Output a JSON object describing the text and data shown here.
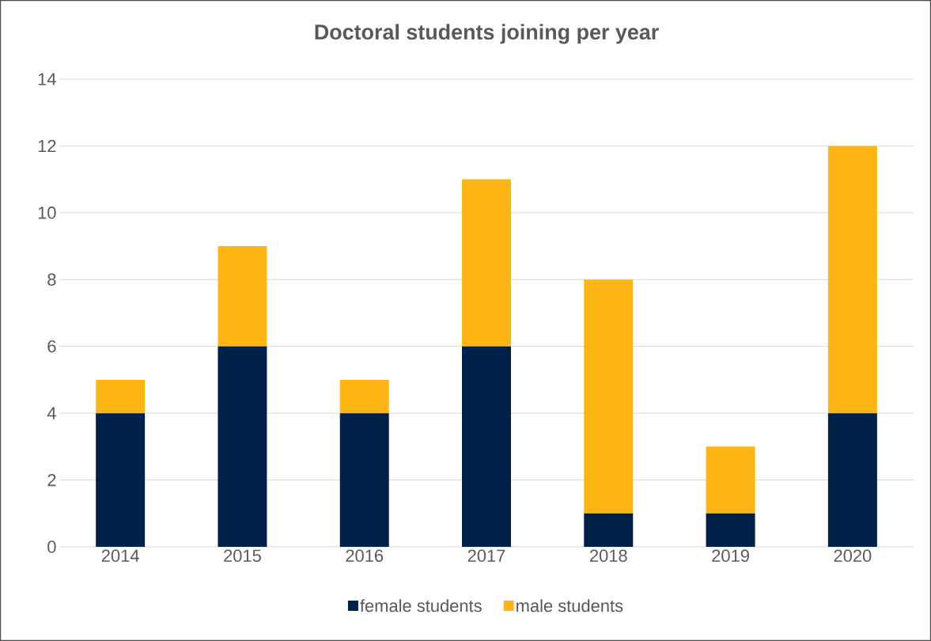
{
  "chart_data": {
    "type": "bar",
    "title": "Doctoral students joining per year",
    "categories": [
      "2014",
      "2015",
      "2016",
      "2017",
      "2018",
      "2019",
      "2020"
    ],
    "series": [
      {
        "name": "female students",
        "color": "#002147",
        "values": [
          4,
          6,
          4,
          6,
          1,
          1,
          4
        ]
      },
      {
        "name": "male students",
        "color": "#FDB515",
        "values": [
          1,
          3,
          1,
          5,
          7,
          2,
          8
        ]
      }
    ],
    "stacked": true,
    "ylim": [
      0,
      14
    ],
    "yticks": [
      0,
      2,
      4,
      6,
      8,
      10,
      12,
      14
    ],
    "grid": "y",
    "legend": "bottom"
  }
}
